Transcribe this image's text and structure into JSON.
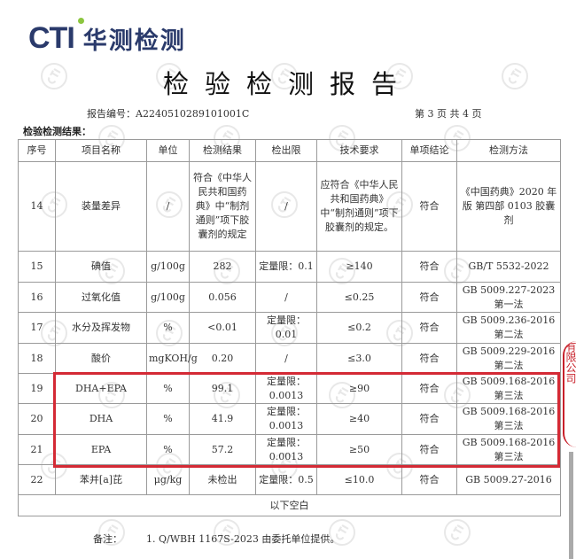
{
  "logo": {
    "brand": "CTI",
    "name": "华测检测"
  },
  "title": "检验检测报告",
  "report_no": "报告编号：A2240510289101001C",
  "page_info": "第 3 页 共 4 页",
  "section_label": "检验检测结果：",
  "headers": [
    "序号",
    "项目名称",
    "单位",
    "检测结果",
    "检出限",
    "技术要求",
    "单项结论",
    "检测方法"
  ],
  "rows": [
    [
      "14",
      "装量差异",
      "/",
      "符合《中华人民共和国药典》中“制剂通则”项下胶囊剂的规定",
      "/",
      "应符合《中华人民共和国药典》中“制剂通则”项下胶囊剂的规定。",
      "符合",
      "《中国药典》2020 年版 第四部 0103 胶囊剂"
    ],
    [
      "15",
      "碘值",
      "g/100g",
      "282",
      "定量限：0.1",
      "≥140",
      "符合",
      "GB/T 5532-2022"
    ],
    [
      "16",
      "过氧化值",
      "g/100g",
      "0.056",
      "/",
      "≤0.25",
      "符合",
      "GB 5009.227-2023 第一法"
    ],
    [
      "17",
      "水分及挥发物",
      "%",
      "<0.01",
      "定量限：0.01",
      "≤0.2",
      "符合",
      "GB 5009.236-2016 第二法"
    ],
    [
      "18",
      "酸价",
      "mgKOH/g",
      "0.20",
      "/",
      "≤3.0",
      "符合",
      "GB 5009.229-2016 第二法"
    ],
    [
      "19",
      "DHA+EPA",
      "%",
      "99.1",
      "定量限：0.0013",
      "≥90",
      "符合",
      "GB 5009.168-2016 第三法"
    ],
    [
      "20",
      "DHA",
      "%",
      "41.9",
      "定量限：0.0013",
      "≥40",
      "符合",
      "GB 5009.168-2016 第三法"
    ],
    [
      "21",
      "EPA",
      "%",
      "57.2",
      "定量限：0.0013",
      "≥50",
      "符合",
      "GB 5009.168-2016 第三法"
    ],
    [
      "22",
      "苯并[a]芘",
      "μg/kg",
      "未检出",
      "定量限：0.5",
      "≤10.0",
      "符合",
      "GB 5009.27-2016"
    ]
  ],
  "blank_note": "以下空白",
  "remark_label": "备注：",
  "remark_text": "1. Q/WBH 1167S-2023 由委托单位提供。",
  "stamp_text": "有限公司",
  "watermark": "CTI",
  "colors": {
    "brand": "#2a3a6b",
    "accent": "#8cc63f",
    "highlight": "#d42a35"
  }
}
